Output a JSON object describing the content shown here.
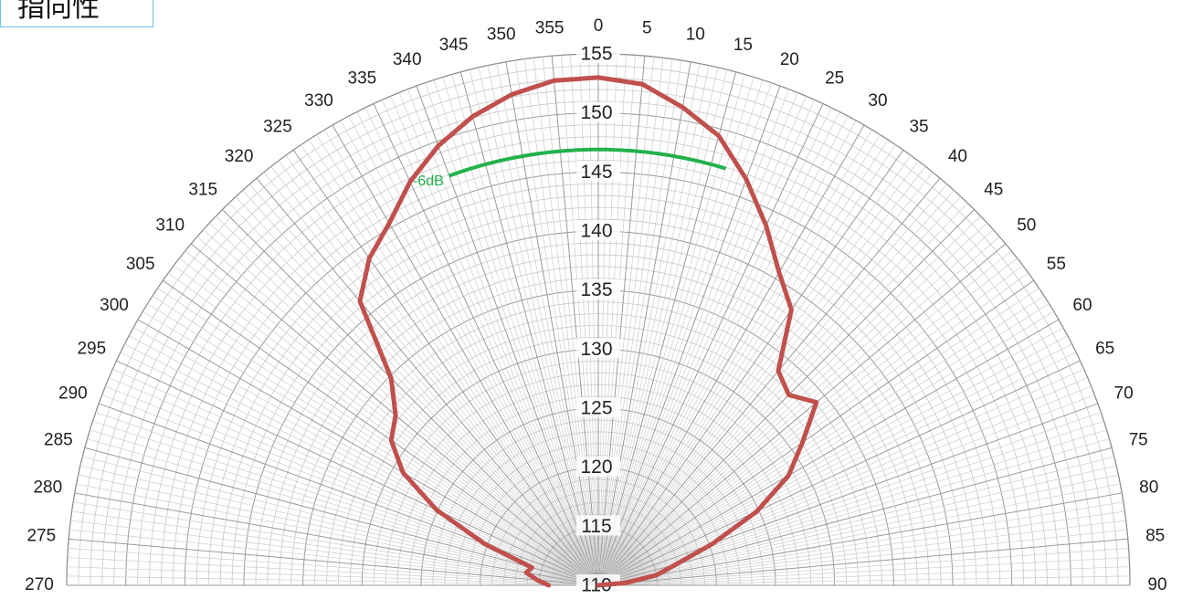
{
  "title": "指向性",
  "chart_data": {
    "type": "polar-line",
    "angle_unit": "degrees",
    "angle_range": [
      270,
      90
    ],
    "angle_tick_labels": [
      "270",
      "275",
      "280",
      "285",
      "290",
      "295",
      "300",
      "305",
      "310",
      "315",
      "320",
      "325",
      "330",
      "335",
      "340",
      "345",
      "350",
      "355",
      "0",
      "5",
      "10",
      "15",
      "20",
      "25",
      "30",
      "35",
      "40",
      "45",
      "50",
      "55",
      "60",
      "65",
      "70",
      "75",
      "80",
      "85",
      "90"
    ],
    "radial_range": [
      110,
      155
    ],
    "radial_tick_labels": [
      "110",
      "115",
      "120",
      "125",
      "130",
      "135",
      "140",
      "145",
      "150",
      "155"
    ],
    "grid": true,
    "series": [
      {
        "color": "#c0504d",
        "points": [
          {
            "angle": 270,
            "value": 114.2
          },
          {
            "angle": 275,
            "value": 115.2
          },
          {
            "angle": 280,
            "value": 116.2
          },
          {
            "angle": 285,
            "value": 115.8
          },
          {
            "angle": 290,
            "value": 120.2
          },
          {
            "angle": 295,
            "value": 125.1
          },
          {
            "angle": 300,
            "value": 129.1
          },
          {
            "angle": 305,
            "value": 131.4
          },
          {
            "angle": 310,
            "value": 132.4
          },
          {
            "angle": 315,
            "value": 134.8
          },
          {
            "angle": 320,
            "value": 141.4
          },
          {
            "angle": 325,
            "value": 143.8
          },
          {
            "angle": 330,
            "value": 145.4
          },
          {
            "angle": 335,
            "value": 147.7
          },
          {
            "angle": 340,
            "value": 149.6
          },
          {
            "angle": 345,
            "value": 151.1
          },
          {
            "angle": 350,
            "value": 152.2
          },
          {
            "angle": 355,
            "value": 152.9
          },
          {
            "angle": 0,
            "value": 153.0
          },
          {
            "angle": 5,
            "value": 152.6
          },
          {
            "angle": 10,
            "value": 151.1
          },
          {
            "angle": 15,
            "value": 149.4
          },
          {
            "angle": 20,
            "value": 146.6
          },
          {
            "angle": 25,
            "value": 143.6
          },
          {
            "angle": 30,
            "value": 140.6
          },
          {
            "angle": 35,
            "value": 138.5
          },
          {
            "angle": 40,
            "value": 133.7
          },
          {
            "angle": 45,
            "value": 132.8
          },
          {
            "angle": 50,
            "value": 134.1
          },
          {
            "angle": 55,
            "value": 131.1
          },
          {
            "angle": 60,
            "value": 128.6
          },
          {
            "angle": 65,
            "value": 124.8
          },
          {
            "angle": 70,
            "value": 120.3
          },
          {
            "angle": 75,
            "value": 116.8
          },
          {
            "angle": 80,
            "value": 115.0
          },
          {
            "angle": 85,
            "value": 112.3
          },
          {
            "angle": 90,
            "value": 110.0
          }
        ]
      }
    ],
    "reference_line": {
      "label": "-6dB",
      "color": "#22b14c",
      "value": 146.9,
      "angle_range": [
        340,
        17
      ]
    }
  }
}
